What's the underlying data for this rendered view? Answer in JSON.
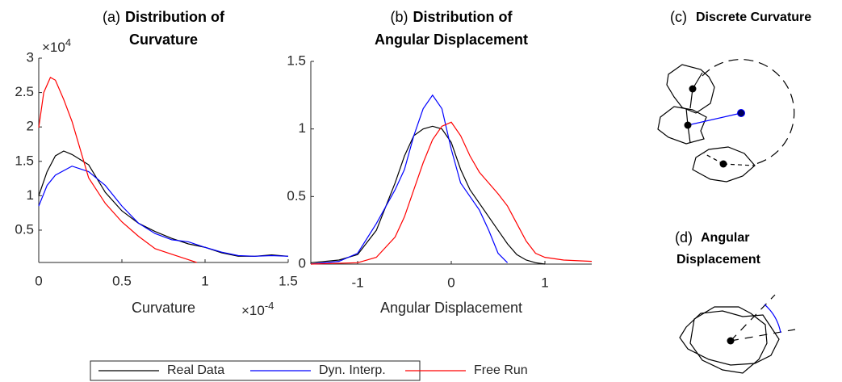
{
  "chart_data": [
    {
      "type": "line",
      "panel": "(a)",
      "title_lines": [
        "Distribution of",
        "Curvature"
      ],
      "x_label": "Curvature",
      "y_multiplier": {
        "base": "×10",
        "exponent": "4"
      },
      "x_multiplier": {
        "base": "×10",
        "exponent": "-4"
      },
      "xlim": [
        0,
        1.5
      ],
      "ylim": [
        0.03,
        3
      ],
      "xticks": [
        0,
        0.5,
        1,
        1.5
      ],
      "yticks": [
        0.5,
        1,
        1.5,
        2,
        2.5,
        3
      ],
      "series": [
        {
          "name": "Real Data",
          "color": "#000000",
          "x": [
            0,
            0.05,
            0.1,
            0.15,
            0.2,
            0.3,
            0.4,
            0.5,
            0.6,
            0.7,
            0.8,
            0.9,
            1.0,
            1.1,
            1.2,
            1.3,
            1.4,
            1.5
          ],
          "values": [
            1.0,
            1.35,
            1.58,
            1.65,
            1.6,
            1.45,
            1.05,
            0.78,
            0.6,
            0.48,
            0.38,
            0.3,
            0.25,
            0.17,
            0.12,
            0.12,
            0.14,
            0.12
          ]
        },
        {
          "name": "Dyn. Interp.",
          "color": "#0000ff",
          "x": [
            0,
            0.05,
            0.1,
            0.2,
            0.3,
            0.4,
            0.5,
            0.6,
            0.7,
            0.8,
            0.9,
            1.0,
            1.1,
            1.2,
            1.3,
            1.4,
            1.5
          ],
          "values": [
            0.85,
            1.15,
            1.3,
            1.43,
            1.35,
            1.15,
            0.85,
            0.6,
            0.45,
            0.36,
            0.33,
            0.25,
            0.18,
            0.13,
            0.12,
            0.13,
            0.12
          ]
        },
        {
          "name": "Free Run",
          "color": "#ff0000",
          "x": [
            0,
            0.03,
            0.07,
            0.1,
            0.15,
            0.2,
            0.3,
            0.4,
            0.5,
            0.6,
            0.7,
            0.8,
            0.9,
            0.95
          ],
          "values": [
            1.99,
            2.5,
            2.72,
            2.68,
            2.4,
            2.08,
            1.26,
            0.89,
            0.62,
            0.41,
            0.23,
            0.15,
            0.07,
            0.03
          ]
        }
      ]
    },
    {
      "type": "line",
      "panel": "(b)",
      "title_lines": [
        "Distribution of",
        "Angular Displacement"
      ],
      "x_label": "Angular Displacement",
      "xlim": [
        -1.5,
        1.5
      ],
      "ylim": [
        0,
        1.5
      ],
      "xticks": [
        -1,
        0,
        1
      ],
      "yticks": [
        0,
        0.5,
        1,
        1.5
      ],
      "series": [
        {
          "color": "#000000",
          "x": [
            -1.5,
            -1.2,
            -1.0,
            -0.8,
            -0.6,
            -0.5,
            -0.4,
            -0.3,
            -0.2,
            -0.1,
            0,
            0.1,
            0.2,
            0.3,
            0.4,
            0.5,
            0.6,
            0.7,
            0.8,
            0.9,
            1.0
          ],
          "values": [
            0.01,
            0.03,
            0.07,
            0.25,
            0.6,
            0.8,
            0.95,
            1.0,
            1.02,
            1.0,
            0.9,
            0.7,
            0.55,
            0.45,
            0.35,
            0.25,
            0.15,
            0.07,
            0.03,
            0.01,
            0
          ]
        },
        {
          "color": "#0000ff",
          "x": [
            -1.5,
            -1.2,
            -1.0,
            -0.8,
            -0.6,
            -0.5,
            -0.4,
            -0.3,
            -0.2,
            -0.1,
            0,
            0.1,
            0.2,
            0.3,
            0.4,
            0.5,
            0.6
          ],
          "values": [
            0,
            0.02,
            0.08,
            0.3,
            0.55,
            0.7,
            0.95,
            1.15,
            1.25,
            1.15,
            0.85,
            0.6,
            0.5,
            0.4,
            0.25,
            0.08,
            0.01
          ]
        },
        {
          "color": "#ff0000",
          "x": [
            -1.5,
            -1.0,
            -0.8,
            -0.6,
            -0.5,
            -0.4,
            -0.3,
            -0.2,
            -0.1,
            0,
            0.1,
            0.2,
            0.3,
            0.4,
            0.5,
            0.6,
            0.7,
            0.8,
            0.9,
            1.0,
            1.2,
            1.5
          ],
          "values": [
            0,
            0.01,
            0.05,
            0.2,
            0.35,
            0.55,
            0.75,
            0.92,
            1.02,
            1.05,
            0.95,
            0.8,
            0.68,
            0.6,
            0.52,
            0.43,
            0.3,
            0.17,
            0.08,
            0.05,
            0.03,
            0.02
          ]
        }
      ]
    }
  ],
  "diagrams": [
    {
      "panel": "(c)",
      "title_lines": [
        "Discrete Curvature"
      ]
    },
    {
      "panel": "(d)",
      "title_lines": [
        "Angular",
        "Displacement"
      ]
    }
  ]
}
